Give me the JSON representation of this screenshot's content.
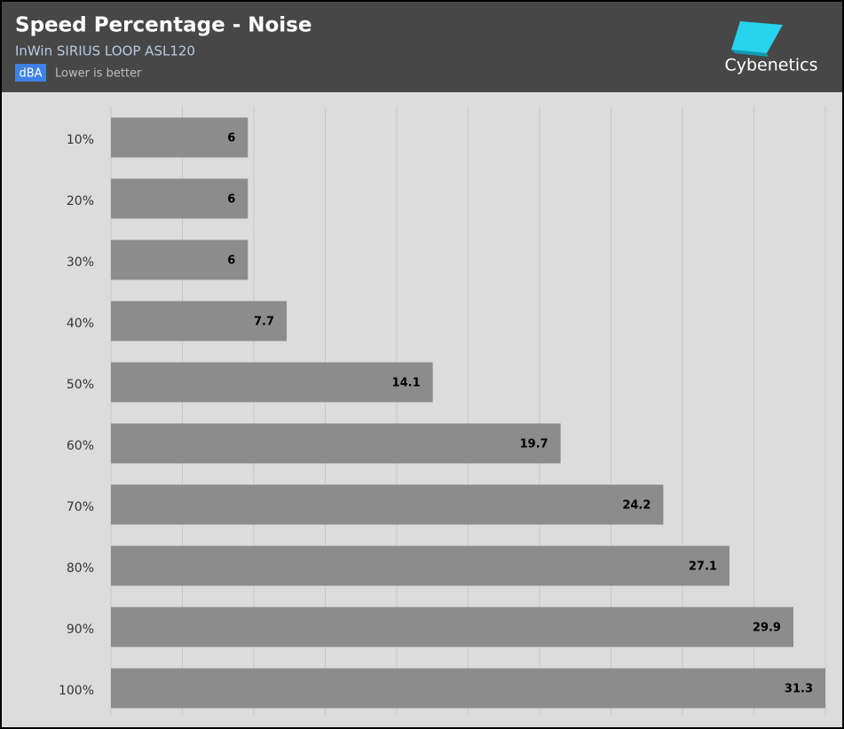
{
  "chart_data": {
    "type": "barh",
    "title": "Speed Percentage - Noise",
    "subtitle": "InWin SIRIUS LOOP ASL120",
    "unit": "dBA",
    "note": "Lower is better",
    "brand": "Cybenetics",
    "categories": [
      "10%",
      "20%",
      "30%",
      "40%",
      "50%",
      "60%",
      "70%",
      "80%",
      "90%",
      "100%"
    ],
    "values": [
      6,
      6,
      6,
      7.7,
      14.1,
      19.7,
      24.2,
      27.1,
      29.9,
      31.3
    ],
    "color": "#8c8c8c",
    "xlim": [
      0,
      31.3
    ]
  }
}
